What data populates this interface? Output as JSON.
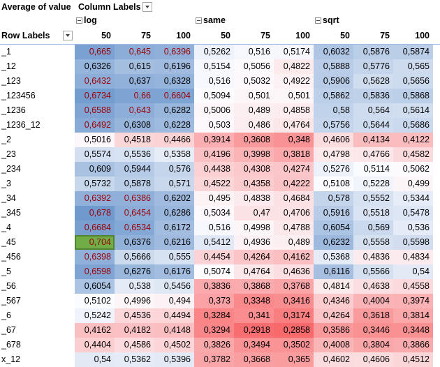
{
  "title_cell": "Average of value",
  "column_labels_header": "Column Labels",
  "row_labels_header": "Row Labels",
  "groups": [
    "log",
    "same",
    "sqrt"
  ],
  "sub_columns": [
    "50",
    "75",
    "100"
  ],
  "rows": [
    {
      "label": "_1",
      "values": [
        "0,665",
        "0,645",
        "0,6396",
        "0,5262",
        "0,516",
        "0,5174",
        "0,6032",
        "0,5876",
        "0,5874"
      ]
    },
    {
      "label": "_12",
      "values": [
        "0,6326",
        "0,615",
        "0,6196",
        "0,5154",
        "0,5056",
        "0,4822",
        "0,5888",
        "0,5776",
        "0,565"
      ]
    },
    {
      "label": "_123",
      "values": [
        "0,6432",
        "0,637",
        "0,6328",
        "0,516",
        "0,5032",
        "0,4922",
        "0,5906",
        "0,5628",
        "0,5656"
      ]
    },
    {
      "label": "_123456",
      "values": [
        "0,6734",
        "0,66",
        "0,6604",
        "0,5094",
        "0,501",
        "0,501",
        "0,5862",
        "0,5836",
        "0,5868"
      ]
    },
    {
      "label": "_1236",
      "values": [
        "0,6588",
        "0,643",
        "0,6282",
        "0,5006",
        "0,489",
        "0,4858",
        "0,58",
        "0,564",
        "0,5614"
      ]
    },
    {
      "label": "_1236_12",
      "values": [
        "0,6492",
        "0,6308",
        "0,6228",
        "0,503",
        "0,486",
        "0,4764",
        "0,5756",
        "0,5644",
        "0,5686"
      ]
    },
    {
      "label": "_2",
      "values": [
        "0,5016",
        "0,4518",
        "0,4466",
        "0,3914",
        "0,3608",
        "0,348",
        "0,4606",
        "0,4134",
        "0,4122"
      ]
    },
    {
      "label": "_23",
      "values": [
        "0,5574",
        "0,5536",
        "0,5358",
        "0,4196",
        "0,3998",
        "0,3818",
        "0,4798",
        "0,4766",
        "0,4582"
      ]
    },
    {
      "label": "_234",
      "values": [
        "0,609",
        "0,5944",
        "0,576",
        "0,4438",
        "0,4308",
        "0,4274",
        "0,5276",
        "0,5114",
        "0,5062"
      ]
    },
    {
      "label": "_3",
      "values": [
        "0,5732",
        "0,5878",
        "0,571",
        "0,4522",
        "0,4358",
        "0,4222",
        "0,5108",
        "0,5228",
        "0,499"
      ]
    },
    {
      "label": "_34",
      "values": [
        "0,6392",
        "0,6386",
        "0,6202",
        "0,495",
        "0,4838",
        "0,4684",
        "0,578",
        "0,5552",
        "0,5344"
      ]
    },
    {
      "label": "_345",
      "values": [
        "0,678",
        "0,6454",
        "0,6286",
        "0,5034",
        "0,47",
        "0,4706",
        "0,5916",
        "0,5518",
        "0,5478"
      ]
    },
    {
      "label": "_4",
      "values": [
        "0,6684",
        "0,6534",
        "0,6172",
        "0,516",
        "0,4998",
        "0,4788",
        "0,6054",
        "0,569",
        "0,536"
      ]
    },
    {
      "label": "_45",
      "values": [
        "0,704",
        "0,6376",
        "0,6216",
        "0,5412",
        "0,4936",
        "0,489",
        "0,6232",
        "0,5558",
        "0,5598"
      ]
    },
    {
      "label": "_456",
      "values": [
        "0,6398",
        "0,5666",
        "0,555",
        "0,4454",
        "0,4264",
        "0,4162",
        "0,5368",
        "0,4836",
        "0,4834"
      ]
    },
    {
      "label": "_5",
      "values": [
        "0,6598",
        "0,6276",
        "0,6176",
        "0,5074",
        "0,4764",
        "0,4636",
        "0,6116",
        "0,5566",
        "0,54"
      ]
    },
    {
      "label": "_56",
      "values": [
        "0,6054",
        "0,538",
        "0,5456",
        "0,3836",
        "0,3868",
        "0,3768",
        "0,4814",
        "0,4638",
        "0,4558"
      ]
    },
    {
      "label": "_567",
      "values": [
        "0,5102",
        "0,4996",
        "0,494",
        "0,373",
        "0,3348",
        "0,3416",
        "0,4346",
        "0,4004",
        "0,3974"
      ]
    },
    {
      "label": "_6",
      "values": [
        "0,5242",
        "0,4536",
        "0,4494",
        "0,3284",
        "0,341",
        "0,3174",
        "0,4264",
        "0,3618",
        "0,3814"
      ]
    },
    {
      "label": "_67",
      "values": [
        "0,4162",
        "0,4182",
        "0,4148",
        "0,3294",
        "0,2918",
        "0,2858",
        "0,3586",
        "0,3446",
        "0,3448"
      ]
    },
    {
      "label": "_678",
      "values": [
        "0,4404",
        "0,4586",
        "0,4502",
        "0,3826",
        "0,3494",
        "0,3502",
        "0,4008",
        "0,3804",
        "0,3866"
      ]
    },
    {
      "label": "x_12",
      "values": [
        "0,54",
        "0,5362",
        "0,5396",
        "0,3782",
        "0,3668",
        "0,365",
        "0,4602",
        "0,4606",
        "0,4512"
      ]
    }
  ],
  "red_text_cells": [
    [
      0,
      0
    ],
    [
      0,
      1
    ],
    [
      0,
      2
    ],
    [
      2,
      0
    ],
    [
      3,
      0
    ],
    [
      3,
      1
    ],
    [
      3,
      2
    ],
    [
      4,
      0
    ],
    [
      4,
      1
    ],
    [
      5,
      0
    ],
    [
      10,
      0
    ],
    [
      10,
      1
    ],
    [
      11,
      0
    ],
    [
      11,
      1
    ],
    [
      12,
      0
    ],
    [
      12,
      1
    ],
    [
      13,
      0
    ],
    [
      14,
      0
    ],
    [
      15,
      0
    ]
  ],
  "selected_cell": [
    13,
    0
  ],
  "colors": {
    "scale_low": "#f8696b",
    "scale_mid": "#fcfcff",
    "scale_high": "#5a8ac6",
    "red_text": "#9c0006",
    "selected_fill": "#70ad47",
    "header_rule": "#9bc2e6"
  }
}
